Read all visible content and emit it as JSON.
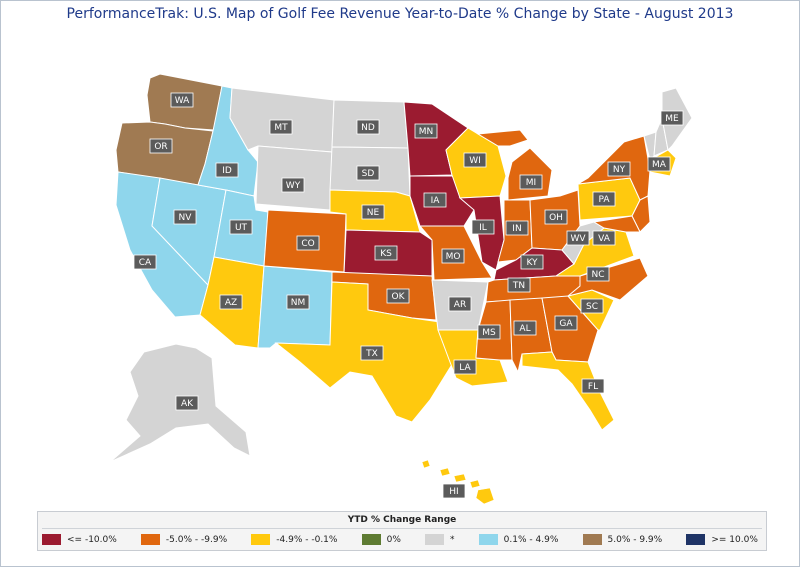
{
  "title": "PerformanceTrak: U.S. Map of Golf Fee Revenue Year-to-Date % Change by State - August 2013",
  "colors": {
    "cat1": "#9b1b30",
    "cat2": "#e0670f",
    "cat3": "#ffc90e",
    "cat4": "#5e7b32",
    "cat5": "#d4d4d4",
    "cat6": "#8fd6ec",
    "cat7": "#a07a52",
    "cat8": "#1f3466"
  },
  "legend": {
    "title": "YTD % Change Range",
    "items": [
      {
        "label": "<= -10.0%",
        "color": "#9b1b30"
      },
      {
        "label": "-5.0% - -9.9%",
        "color": "#e0670f"
      },
      {
        "label": "-4.9% - -0.1%",
        "color": "#ffc90e"
      },
      {
        "label": "0%",
        "color": "#5e7b32"
      },
      {
        "label": "*",
        "color": "#d4d4d4"
      },
      {
        "label": "0.1% - 4.9%",
        "color": "#8fd6ec"
      },
      {
        "label": "5.0% - 9.9%",
        "color": "#a07a52"
      },
      {
        "label": ">= 10.0%",
        "color": "#1f3466"
      }
    ]
  },
  "states": [
    {
      "code": "WA",
      "range": "5.0% - 9.9%"
    },
    {
      "code": "OR",
      "range": "5.0% - 9.9%"
    },
    {
      "code": "CA",
      "range": "0.1% - 4.9%"
    },
    {
      "code": "NV",
      "range": "0.1% - 4.9%"
    },
    {
      "code": "ID",
      "range": "0.1% - 4.9%"
    },
    {
      "code": "UT",
      "range": "0.1% - 4.9%"
    },
    {
      "code": "AZ",
      "range": "-4.9% - -0.1%"
    },
    {
      "code": "NM",
      "range": "0.1% - 4.9%"
    },
    {
      "code": "MT",
      "range": "*"
    },
    {
      "code": "WY",
      "range": "*"
    },
    {
      "code": "CO",
      "range": "-5.0% - -9.9%"
    },
    {
      "code": "ND",
      "range": "*"
    },
    {
      "code": "SD",
      "range": "*"
    },
    {
      "code": "NE",
      "range": "-4.9% - -0.1%"
    },
    {
      "code": "KS",
      "range": "<= -10.0%"
    },
    {
      "code": "OK",
      "range": "-5.0% - -9.9%"
    },
    {
      "code": "TX",
      "range": "-4.9% - -0.1%"
    },
    {
      "code": "MN",
      "range": "<= -10.0%"
    },
    {
      "code": "IA",
      "range": "<= -10.0%"
    },
    {
      "code": "MO",
      "range": "-5.0% - -9.9%"
    },
    {
      "code": "AR",
      "range": "*"
    },
    {
      "code": "LA",
      "range": "-4.9% - -0.1%"
    },
    {
      "code": "WI",
      "range": "-4.9% - -0.1%"
    },
    {
      "code": "IL",
      "range": "<= -10.0%"
    },
    {
      "code": "MI",
      "range": "-5.0% - -9.9%"
    },
    {
      "code": "IN",
      "range": "-5.0% - -9.9%"
    },
    {
      "code": "OH",
      "range": "-5.0% - -9.9%"
    },
    {
      "code": "KY",
      "range": "<= -10.0%"
    },
    {
      "code": "TN",
      "range": "-5.0% - -9.9%"
    },
    {
      "code": "MS",
      "range": "-5.0% - -9.9%"
    },
    {
      "code": "AL",
      "range": "-5.0% - -9.9%"
    },
    {
      "code": "GA",
      "range": "-5.0% - -9.9%"
    },
    {
      "code": "FL",
      "range": "-4.9% - -0.1%"
    },
    {
      "code": "SC",
      "range": "-4.9% - -0.1%"
    },
    {
      "code": "NC",
      "range": "-5.0% - -9.9%"
    },
    {
      "code": "VA",
      "range": "-4.9% - -0.1%"
    },
    {
      "code": "WV",
      "range": "*"
    },
    {
      "code": "PA",
      "range": "-4.9% - -0.1%"
    },
    {
      "code": "NY",
      "range": "-5.0% - -9.9%"
    },
    {
      "code": "ME",
      "range": "*"
    },
    {
      "code": "MA",
      "range": "-4.9% - -0.1%"
    },
    {
      "code": "AK",
      "range": "*"
    },
    {
      "code": "HI",
      "range": "-4.9% - -0.1%"
    }
  ]
}
